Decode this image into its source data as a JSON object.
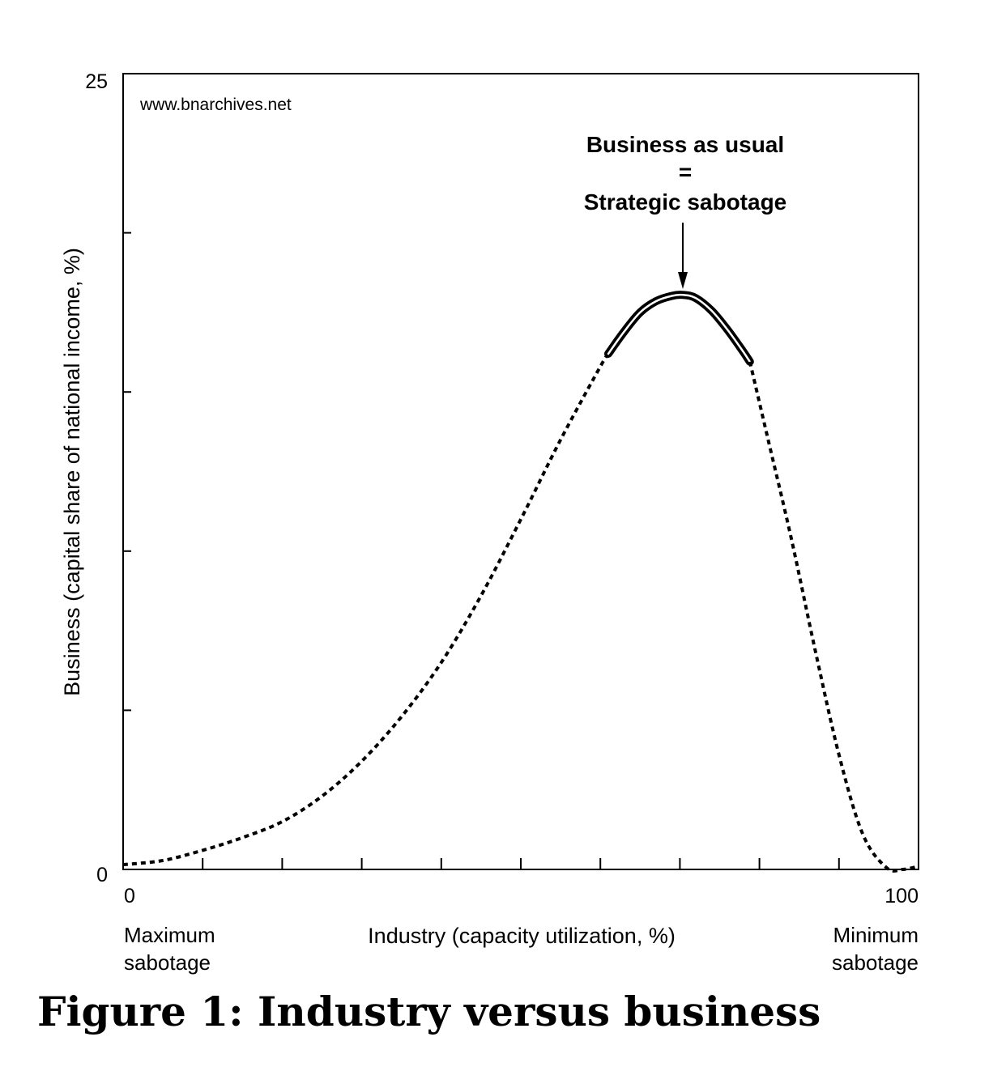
{
  "figure_caption": "Figure 1: Industry versus business",
  "chart_data": {
    "type": "line",
    "title": "",
    "watermark": "www.bnarchives.net",
    "xlabel": "Industry (capacity utilization, %)",
    "ylabel": "Business (capital share of national income, %)",
    "xlim": [
      0,
      100
    ],
    "ylim": [
      0,
      25
    ],
    "x_tick_labels": [
      "0",
      "100"
    ],
    "y_tick_labels": [
      "0",
      "25"
    ],
    "x_tick_count": 11,
    "y_tick_count": 6,
    "x_left_note": [
      "Maximum",
      "sabotage"
    ],
    "x_right_note": [
      "Minimum",
      "sabotage"
    ],
    "annotation": {
      "lines": [
        "Business as usual",
        "=",
        "Strategic sabotage"
      ],
      "points_to": {
        "x": 70.4,
        "y": 18.05
      }
    },
    "grid": false,
    "series": [
      {
        "style": "dotted",
        "x": [
          0,
          5,
          10,
          15,
          20,
          25,
          30,
          35,
          40,
          45,
          50,
          55,
          60,
          61
        ],
        "y": [
          0.15,
          0.28,
          0.6,
          1.0,
          1.5,
          2.3,
          3.4,
          4.8,
          6.5,
          8.6,
          11.0,
          13.5,
          15.8,
          16.2
        ]
      },
      {
        "style": "bold-outlined",
        "x": [
          61,
          63,
          65,
          67,
          69,
          70.4,
          72,
          74,
          76,
          78,
          78.8
        ],
        "y": [
          16.2,
          16.9,
          17.5,
          17.85,
          18.02,
          18.05,
          17.95,
          17.55,
          16.95,
          16.25,
          15.95
        ]
      },
      {
        "style": "dotted",
        "x": [
          78.8,
          81,
          84,
          87,
          90,
          93,
          96,
          98,
          100
        ],
        "y": [
          15.95,
          13.6,
          10.4,
          6.9,
          3.6,
          1.1,
          0.05,
          0.0,
          0.1
        ]
      }
    ]
  }
}
